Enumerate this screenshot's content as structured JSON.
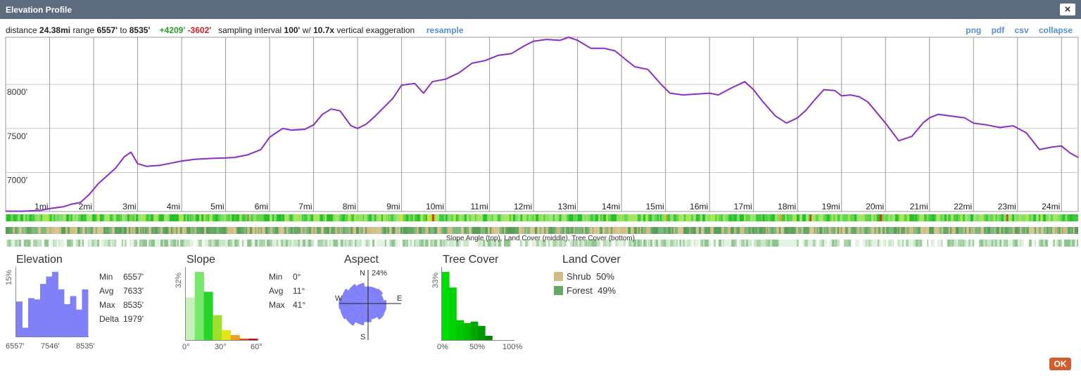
{
  "window": {
    "title": "Elevation Profile",
    "close_label": "×",
    "ok_label": "OK"
  },
  "info": {
    "distance_label": "distance",
    "distance": "24.38mi",
    "range_label": "range",
    "range_min": "6557'",
    "range_to": "to",
    "range_max": "8535'",
    "gain": "+4209'",
    "loss": "-3602'",
    "sampling_label": "sampling interval",
    "sampling": "100'",
    "w_label": "w/",
    "exaggeration": "10.7x",
    "exaggeration_label": "vertical exaggeration",
    "resample": "resample"
  },
  "export_links": [
    "png",
    "pdf",
    "csv",
    "collapse"
  ],
  "chart_data": {
    "type": "line",
    "xlabel": "",
    "ylabel": "",
    "x_ticks": [
      "1mi",
      "2mi",
      "3mi",
      "4mi",
      "5mi",
      "6mi",
      "7mi",
      "8mi",
      "9mi",
      "10mi",
      "11mi",
      "12mi",
      "13mi",
      "14mi",
      "15mi",
      "16mi",
      "17mi",
      "18mi",
      "19mi",
      "20mi",
      "21mi",
      "22mi",
      "23mi",
      "24mi"
    ],
    "y_ticks": [
      "7000'",
      "7500'",
      "8000'"
    ],
    "y_tick_values": [
      7000,
      7500,
      8000
    ],
    "xlim": [
      0,
      24.38
    ],
    "ylim": [
      6557,
      8535
    ],
    "line_color": "#8a2fc0",
    "series": [
      {
        "x": [
          0,
          0.4,
          0.8,
          1.0,
          1.3,
          1.5,
          1.7,
          1.9,
          2.1,
          2.3,
          2.5,
          2.7,
          2.85,
          3.0,
          3.2,
          3.5,
          3.8,
          4.0,
          4.3,
          4.7,
          5.0,
          5.2,
          5.5,
          5.8,
          6.0,
          6.15,
          6.3,
          6.5,
          6.8,
          7.0,
          7.2,
          7.4,
          7.6,
          7.85,
          8.0,
          8.2,
          8.4,
          8.6,
          8.8,
          9.0,
          9.3,
          9.5,
          9.7,
          10.0,
          10.3,
          10.6,
          10.9,
          11.2,
          11.5,
          11.8,
          12.0,
          12.3,
          12.6,
          12.8,
          13.0,
          13.3,
          13.6,
          13.85,
          14.1,
          14.3,
          14.6,
          14.9,
          15.1,
          15.4,
          15.7,
          16.0,
          16.2,
          16.5,
          16.8,
          17.0,
          17.2,
          17.5,
          17.75,
          18.0,
          18.2,
          18.4,
          18.6,
          18.85,
          19.0,
          19.2,
          19.4,
          19.6,
          19.8,
          20.0,
          20.3,
          20.6,
          20.85,
          21.0,
          21.2,
          21.5,
          21.8,
          22.0,
          22.3,
          22.6,
          22.9,
          23.2,
          23.5,
          23.8,
          24.0,
          24.2,
          24.38
        ],
        "y": [
          6560,
          6560,
          6570,
          6590,
          6610,
          6640,
          6660,
          6750,
          6870,
          6960,
          7050,
          7180,
          7230,
          7100,
          7070,
          7080,
          7110,
          7130,
          7150,
          7160,
          7165,
          7170,
          7200,
          7260,
          7400,
          7450,
          7500,
          7480,
          7490,
          7540,
          7660,
          7720,
          7700,
          7530,
          7500,
          7550,
          7640,
          7740,
          7840,
          7990,
          8010,
          7900,
          8030,
          8060,
          8130,
          8240,
          8270,
          8330,
          8350,
          8440,
          8490,
          8510,
          8500,
          8535,
          8500,
          8410,
          8410,
          8380,
          8280,
          8200,
          8170,
          8000,
          7900,
          7880,
          7890,
          7900,
          7880,
          7960,
          8030,
          7940,
          7810,
          7640,
          7560,
          7620,
          7710,
          7830,
          7940,
          7930,
          7870,
          7880,
          7860,
          7800,
          7680,
          7560,
          7360,
          7410,
          7560,
          7620,
          7660,
          7640,
          7620,
          7560,
          7540,
          7510,
          7530,
          7450,
          7260,
          7290,
          7300,
          7220,
          7170
        ]
      }
    ]
  },
  "bands_caption": "Slope Angle (top), Land Cover (middle), Tree Cover (bottom)",
  "elevation": {
    "title": "Elevation",
    "y_max_label": "15%",
    "x_labels": [
      "6557'",
      "7546'",
      "8535'"
    ],
    "stats": [
      {
        "k": "Min",
        "v": "6557'"
      },
      {
        "k": "Avg",
        "v": "7633'"
      },
      {
        "k": "Max",
        "v": "8535'"
      },
      {
        "k": "Delta",
        "v": "1979'"
      }
    ],
    "bin_values": [
      0.52,
      0.13,
      0.57,
      0.55,
      0.78,
      0.89,
      0.96,
      0.7,
      0.48,
      0.6,
      0.4,
      0.7
    ],
    "color": "#8080f8"
  },
  "slope": {
    "title": "Slope",
    "y_max_label": "32%",
    "x_labels": [
      "0°",
      "30°",
      "60°"
    ],
    "stats": [
      {
        "k": "Min",
        "v": "0°"
      },
      {
        "k": "Avg",
        "v": "11°"
      },
      {
        "k": "Max",
        "v": "41°"
      }
    ],
    "bin_values": [
      0.6,
      0.96,
      0.68,
      0.35,
      0.14,
      0.07,
      0.02,
      0.02
    ],
    "bin_colors": [
      "#c7f0b8",
      "#78e86c",
      "#28d428",
      "#9ee02a",
      "#e0e81a",
      "#f0a020",
      "#e04818",
      "#c01010"
    ]
  },
  "aspect": {
    "title": "Aspect",
    "max_label": "24%",
    "north": "N",
    "south": "S",
    "east": "E",
    "west": "W",
    "sector_values": [
      0.42,
      0.42,
      0.44,
      0.39,
      0.45,
      0.46,
      0.48,
      0.4,
      0.46,
      0.55,
      0.66,
      0.7,
      0.72,
      0.66,
      0.58,
      0.52
    ],
    "color": "#8080f8"
  },
  "tree_cover": {
    "title": "Tree Cover",
    "y_max_label": "33%",
    "x_labels": [
      "0%",
      "50%",
      "100%"
    ],
    "bin_values": [
      0.96,
      0.74,
      0.28,
      0.24,
      0.26,
      0.2,
      0.06,
      0,
      0,
      0
    ],
    "bin_colors": [
      "#00dd00",
      "#00d400",
      "#00c800",
      "#00bc00",
      "#00a800",
      "#009800",
      "#008800",
      "#007800",
      "#006800",
      "#005800"
    ]
  },
  "land_cover": {
    "title": "Land Cover",
    "items": [
      {
        "label": "Shrub",
        "pct": "50%",
        "color": "#cfbd85"
      },
      {
        "label": "Forest",
        "pct": "49%",
        "color": "#66a866"
      }
    ]
  }
}
